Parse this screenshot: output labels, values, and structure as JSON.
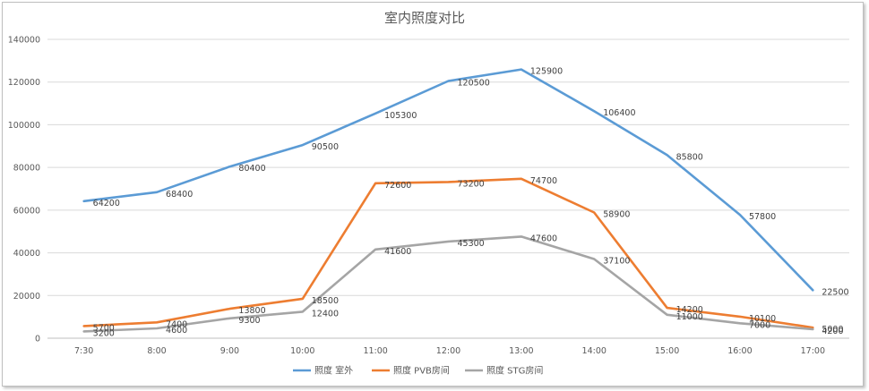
{
  "chart_data": {
    "type": "line",
    "title": "室内照度对比",
    "xlabel": "",
    "ylabel": "",
    "categories": [
      "7:30",
      "8:00",
      "9:00",
      "10:00",
      "11:00",
      "12:00",
      "13:00",
      "14:00",
      "15:00",
      "16:00",
      "17:00"
    ],
    "ylim": [
      0,
      140000
    ],
    "yticks": [
      0,
      20000,
      40000,
      60000,
      80000,
      100000,
      120000,
      140000
    ],
    "grid": true,
    "legend_position": "bottom",
    "series": [
      {
        "name": "照度 室外",
        "color": "#5b9bd5",
        "values": [
          64200,
          68400,
          80400,
          90500,
          105300,
          120500,
          125900,
          106400,
          85800,
          57800,
          22500
        ]
      },
      {
        "name": "照度 PVB房间",
        "color": "#ed7d31",
        "values": [
          5700,
          7400,
          13800,
          18500,
          72600,
          73200,
          74700,
          58900,
          14200,
          10100,
          5000
        ]
      },
      {
        "name": "照度 STG房间",
        "color": "#a5a5a5",
        "values": [
          3200,
          4600,
          9300,
          12400,
          41600,
          45300,
          47600,
          37100,
          11000,
          7000,
          4200
        ]
      }
    ]
  }
}
